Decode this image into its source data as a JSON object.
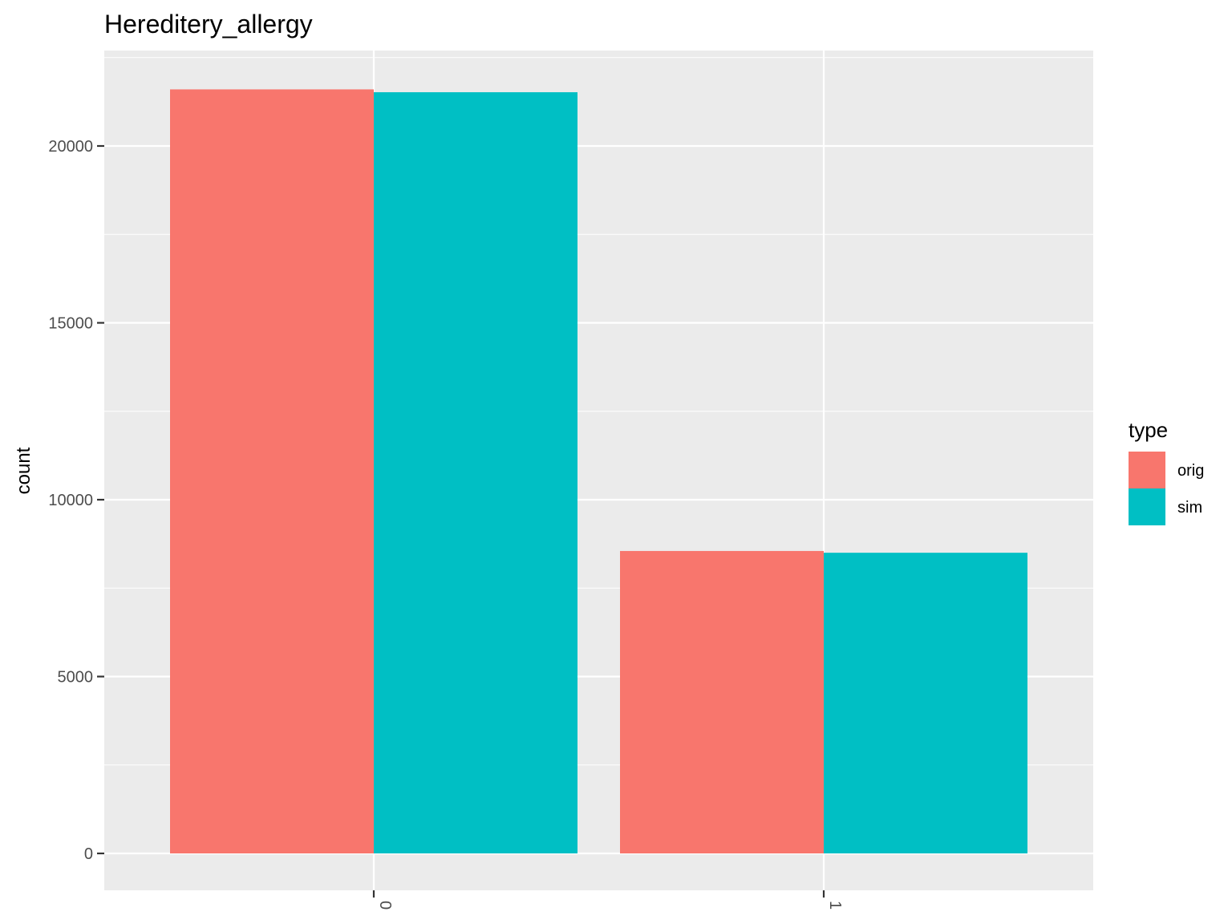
{
  "chart_data": {
    "type": "bar",
    "title": "Hereditery_allergy",
    "xlabel": "",
    "ylabel": "count",
    "categories": [
      "0",
      "1"
    ],
    "series": [
      {
        "name": "orig",
        "color": "#F8766D",
        "values": [
          21600,
          8550
        ]
      },
      {
        "name": "sim",
        "color": "#00BFC4",
        "values": [
          21520,
          8500
        ]
      }
    ],
    "yticks": [
      0,
      5000,
      10000,
      15000,
      20000
    ],
    "ylim": [
      -1050,
      22700
    ],
    "legend": {
      "title": "type",
      "position": "right"
    },
    "grid": true,
    "background": "#EBEBEB"
  }
}
